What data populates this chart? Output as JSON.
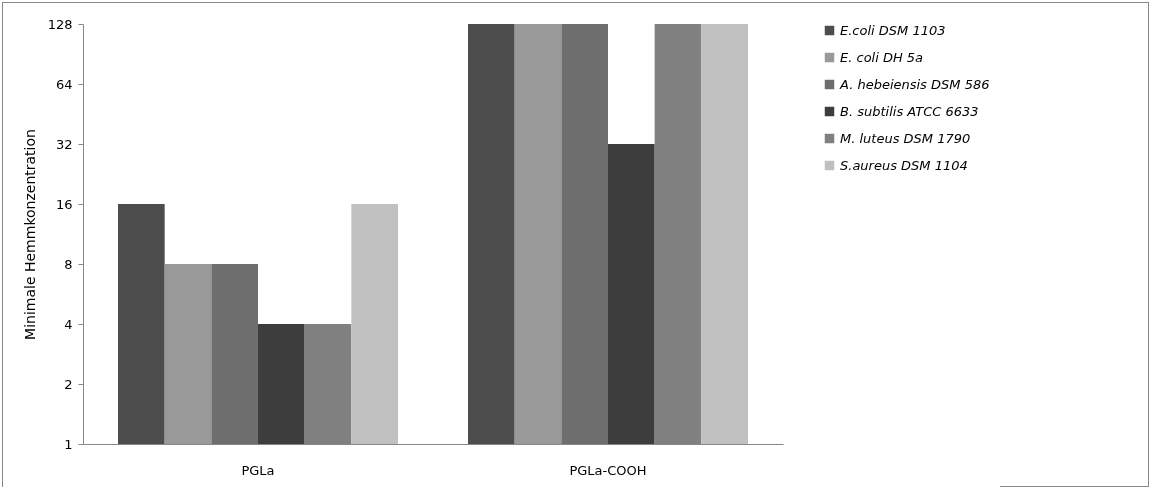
{
  "chart_data": {
    "type": "bar",
    "ylabel": "Minimale Hemmkonzentration",
    "categories": [
      "PGLa",
      "PGLa-COOH"
    ],
    "series": [
      {
        "name": "E.coli DSM 1103",
        "color": "#4d4d4d",
        "values": [
          16,
          128
        ]
      },
      {
        "name": "E. coli DH 5a",
        "color": "#999999",
        "values": [
          8,
          128
        ]
      },
      {
        "name": "A. hebeiensis DSM 586",
        "color": "#6e6e6e",
        "values": [
          8,
          128
        ]
      },
      {
        "name": "B. subtilis ATCC 6633",
        "color": "#3d3d3d",
        "values": [
          4,
          32
        ]
      },
      {
        "name": "M. luteus DSM 1790",
        "color": "#808080",
        "values": [
          4,
          128
        ]
      },
      {
        "name": "S.aureus DSM 1104",
        "color": "#c0c0c0",
        "values": [
          16,
          128
        ]
      }
    ],
    "log": "y",
    "ylim": [
      1,
      128
    ],
    "yticks": [
      1,
      2,
      4,
      8,
      16,
      32,
      64,
      128
    ],
    "grid": false,
    "legend": "right"
  }
}
